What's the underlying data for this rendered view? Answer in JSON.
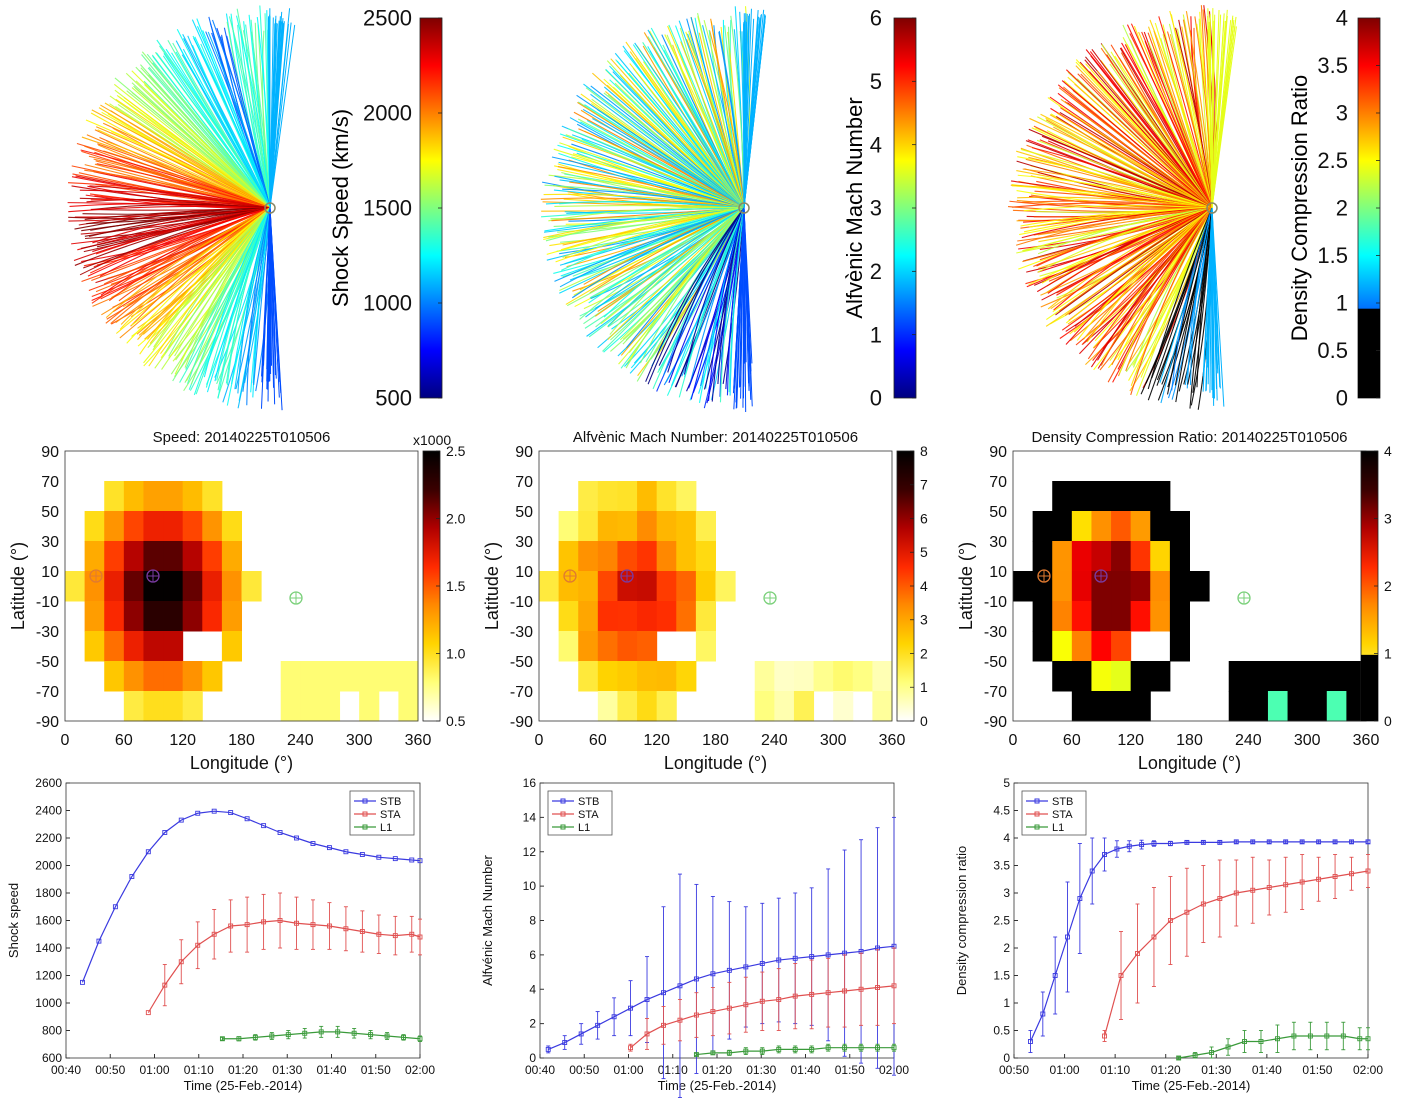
{
  "colors": {
    "jet": [
      "#00007f",
      "#0000ff",
      "#007fff",
      "#00ffff",
      "#7fff7f",
      "#ffff00",
      "#ff7f00",
      "#ff0000",
      "#7f0000"
    ],
    "hot_rev": [
      "#ffffff",
      "#ffff7a",
      "#ffd400",
      "#ff8a00",
      "#ff2a00",
      "#b00000",
      "#3a0000",
      "#000000"
    ],
    "stb": "#3a3ae0",
    "sta": "#e05050",
    "l1": "#3a9a3a",
    "black": "#000000"
  },
  "fans": [
    {
      "colorbar_label": "Shock Speed (km/s)",
      "ticks": [
        "2500",
        "2000",
        "1500",
        "1000",
        "500"
      ]
    },
    {
      "colorbar_label": "Alfvènic Mach Number",
      "ticks": [
        "6",
        "5",
        "4",
        "3",
        "2",
        "1",
        "0"
      ]
    },
    {
      "colorbar_label": "Density Compression Ratio",
      "ticks": [
        "4",
        "3.5",
        "3",
        "2.5",
        "2",
        "1.5",
        "1",
        "0.5",
        "0"
      ]
    }
  ],
  "maps": [
    {
      "title": "Speed: 20140225T010506",
      "colorbar_multiplier": "x1000",
      "colorbar_ticks": [
        "2.5",
        "2.0",
        "1.5",
        "1.0",
        "0.5"
      ],
      "xlabel": "Longitude (°)",
      "ylabel": "Latitude (°)",
      "xticks": [
        "0",
        "60",
        "120",
        "180",
        "240",
        "300",
        "360"
      ],
      "yticks": [
        "90",
        "70",
        "50",
        "30",
        "10",
        "-10",
        "-30",
        "-50",
        "-70",
        "-90"
      ]
    },
    {
      "title": "Alfvènic Mach Number: 20140225T010506",
      "colorbar_ticks": [
        "8",
        "7",
        "6",
        "5",
        "4",
        "3",
        "2",
        "1",
        "0"
      ],
      "xlabel": "Longitude (°)",
      "ylabel": "Latitude (°)",
      "xticks": [
        "0",
        "60",
        "120",
        "180",
        "240",
        "300",
        "360"
      ],
      "yticks": [
        "90",
        "70",
        "50",
        "30",
        "10",
        "-10",
        "-30",
        "-50",
        "-70",
        "-90"
      ]
    },
    {
      "title": "Density Compression Ratio: 20140225T010506",
      "colorbar_ticks": [
        "4",
        "3",
        "2",
        "1",
        "0"
      ],
      "xlabel": "Longitude (°)",
      "ylabel": "Latitude (°)",
      "xticks": [
        "0",
        "60",
        "120",
        "180",
        "240",
        "300",
        "360"
      ],
      "yticks": [
        "90",
        "70",
        "50",
        "30",
        "10",
        "-10",
        "-30",
        "-50",
        "-70",
        "-90"
      ]
    }
  ],
  "chart_data": [
    {
      "type": "line",
      "xlabel": "Time (25-Feb.-2014)",
      "ylabel": "Shock speed",
      "xticks": [
        "00:40",
        "00:50",
        "01:00",
        "01:10",
        "01:20",
        "01:30",
        "01:40",
        "01:50",
        "02:00"
      ],
      "yticks": [
        "2600",
        "2400",
        "2200",
        "2000",
        "1800",
        "1600",
        "1400",
        "1200",
        "1000",
        "800",
        "600"
      ],
      "ylim": [
        600,
        2600
      ],
      "legend": "top-right",
      "series": [
        {
          "name": "STB",
          "x": [
            4,
            8,
            12,
            16,
            20,
            24,
            28,
            32,
            36,
            40,
            44,
            48,
            52,
            56,
            60,
            64,
            68,
            72,
            76,
            80,
            84,
            86
          ],
          "y": [
            1150,
            1450,
            1700,
            1920,
            2100,
            2240,
            2330,
            2380,
            2395,
            2385,
            2340,
            2290,
            2240,
            2200,
            2160,
            2130,
            2100,
            2080,
            2060,
            2050,
            2040,
            2035
          ],
          "err": [
            0,
            0,
            0,
            0,
            0,
            0,
            0,
            0,
            0,
            0,
            0,
            0,
            0,
            0,
            0,
            0,
            0,
            0,
            0,
            0,
            0,
            0
          ]
        },
        {
          "name": "STA",
          "x": [
            20,
            24,
            28,
            32,
            36,
            40,
            44,
            48,
            52,
            56,
            60,
            64,
            68,
            72,
            76,
            80,
            84,
            86
          ],
          "y": [
            930,
            1130,
            1300,
            1420,
            1500,
            1560,
            1570,
            1590,
            1600,
            1580,
            1570,
            1560,
            1540,
            1520,
            1500,
            1490,
            1500,
            1480
          ],
          "err": [
            0,
            150,
            160,
            170,
            180,
            190,
            200,
            200,
            200,
            190,
            180,
            170,
            160,
            150,
            140,
            140,
            130,
            130
          ]
        },
        {
          "name": "L1",
          "x": [
            38,
            42,
            46,
            50,
            54,
            58,
            62,
            66,
            70,
            74,
            78,
            82,
            86
          ],
          "y": [
            740,
            740,
            750,
            760,
            770,
            780,
            790,
            790,
            780,
            770,
            760,
            750,
            740
          ],
          "err": [
            10,
            15,
            20,
            25,
            30,
            35,
            40,
            40,
            35,
            30,
            25,
            20,
            20
          ]
        }
      ]
    },
    {
      "type": "line",
      "xlabel": "Time (25-Feb.-2014)",
      "ylabel": "Alfvénic Mach Number",
      "xticks": [
        "00:40",
        "00:50",
        "01:00",
        "01:10",
        "01:20",
        "01:30",
        "01:40",
        "01:50",
        "02:00"
      ],
      "yticks": [
        "16",
        "14",
        "12",
        "10",
        "8",
        "6",
        "4",
        "2",
        "0"
      ],
      "ylim": [
        0,
        16
      ],
      "legend": "top-left",
      "series": [
        {
          "name": "STB",
          "x": [
            2,
            6,
            10,
            14,
            18,
            22,
            26,
            30,
            34,
            38,
            42,
            46,
            50,
            54,
            58,
            62,
            66,
            70,
            74,
            78,
            82,
            86
          ],
          "y": [
            0.5,
            0.9,
            1.4,
            1.9,
            2.4,
            2.9,
            3.4,
            3.8,
            4.2,
            4.6,
            4.9,
            5.1,
            5.3,
            5.5,
            5.7,
            5.8,
            5.9,
            6.0,
            6.1,
            6.2,
            6.4,
            6.5
          ],
          "err": [
            0.2,
            0.4,
            0.6,
            0.8,
            1.1,
            1.6,
            2.5,
            5.0,
            6.5,
            5.5,
            4.5,
            4.0,
            3.5,
            3.5,
            3.6,
            3.8,
            4.0,
            5.0,
            6.0,
            6.5,
            7.0,
            7.5
          ]
        },
        {
          "name": "STA",
          "x": [
            22,
            26,
            30,
            34,
            38,
            42,
            46,
            50,
            54,
            58,
            62,
            66,
            70,
            74,
            78,
            82,
            86
          ],
          "y": [
            0.6,
            1.4,
            1.9,
            2.2,
            2.5,
            2.7,
            2.9,
            3.1,
            3.3,
            3.4,
            3.6,
            3.7,
            3.8,
            3.9,
            4.0,
            4.1,
            4.2
          ],
          "err": [
            0.2,
            0.9,
            1.1,
            1.2,
            1.3,
            1.4,
            1.5,
            1.6,
            1.7,
            1.8,
            1.9,
            2.0,
            2.0,
            2.1,
            2.1,
            2.2,
            2.2
          ]
        },
        {
          "name": "L1",
          "x": [
            38,
            42,
            46,
            50,
            54,
            58,
            62,
            66,
            70,
            74,
            78,
            82,
            86
          ],
          "y": [
            0.2,
            0.3,
            0.3,
            0.4,
            0.4,
            0.5,
            0.5,
            0.5,
            0.6,
            0.6,
            0.6,
            0.6,
            0.6
          ],
          "err": [
            0.05,
            0.1,
            0.15,
            0.2,
            0.2,
            0.2,
            0.2,
            0.2,
            0.2,
            0.2,
            0.2,
            0.2,
            0.2
          ]
        }
      ]
    },
    {
      "type": "line",
      "xlabel": "Time (25-Feb.-2014)",
      "ylabel": "Density compression ratio",
      "xticks": [
        "00:50",
        "01:00",
        "01:10",
        "01:20",
        "01:30",
        "01:40",
        "01:50",
        "02:00"
      ],
      "yticks": [
        "5",
        "4.5",
        "4",
        "3.5",
        "3",
        "2.5",
        "2",
        "1.5",
        "1",
        "0.5",
        "0"
      ],
      "ylim": [
        0,
        5
      ],
      "legend": "top-left",
      "series": [
        {
          "name": "STB",
          "x": [
            4,
            7,
            10,
            13,
            16,
            19,
            22,
            25,
            28,
            31,
            34,
            38,
            42,
            46,
            50,
            54,
            58,
            62,
            66,
            70,
            74,
            78,
            82,
            86
          ],
          "y": [
            0.3,
            0.8,
            1.5,
            2.2,
            2.9,
            3.4,
            3.7,
            3.8,
            3.85,
            3.88,
            3.9,
            3.9,
            3.92,
            3.92,
            3.92,
            3.93,
            3.93,
            3.93,
            3.93,
            3.93,
            3.93,
            3.93,
            3.93,
            3.93
          ],
          "err": [
            0.2,
            0.4,
            0.7,
            1.0,
            1.0,
            0.6,
            0.3,
            0.15,
            0.1,
            0.08,
            0.05,
            0.04,
            0.03,
            0.03,
            0.03,
            0.03,
            0.03,
            0.03,
            0.03,
            0.03,
            0.03,
            0.03,
            0.03,
            0.03
          ]
        },
        {
          "name": "STA",
          "x": [
            22,
            26,
            30,
            34,
            38,
            42,
            46,
            50,
            54,
            58,
            62,
            66,
            70,
            74,
            78,
            82,
            86
          ],
          "y": [
            0.4,
            1.5,
            1.9,
            2.2,
            2.5,
            2.65,
            2.8,
            2.9,
            3.0,
            3.05,
            3.1,
            3.15,
            3.2,
            3.25,
            3.3,
            3.35,
            3.4
          ],
          "err": [
            0.1,
            0.8,
            0.9,
            0.9,
            0.8,
            0.8,
            0.7,
            0.7,
            0.6,
            0.6,
            0.5,
            0.5,
            0.5,
            0.4,
            0.4,
            0.3,
            0.3
          ]
        },
        {
          "name": "L1",
          "x": [
            40,
            44,
            48,
            52,
            56,
            60,
            64,
            68,
            72,
            76,
            80,
            84,
            86
          ],
          "y": [
            0.0,
            0.05,
            0.1,
            0.2,
            0.3,
            0.3,
            0.35,
            0.4,
            0.4,
            0.4,
            0.4,
            0.35,
            0.35
          ],
          "err": [
            0.02,
            0.05,
            0.1,
            0.15,
            0.2,
            0.2,
            0.25,
            0.25,
            0.25,
            0.25,
            0.25,
            0.2,
            0.2
          ]
        }
      ]
    }
  ]
}
